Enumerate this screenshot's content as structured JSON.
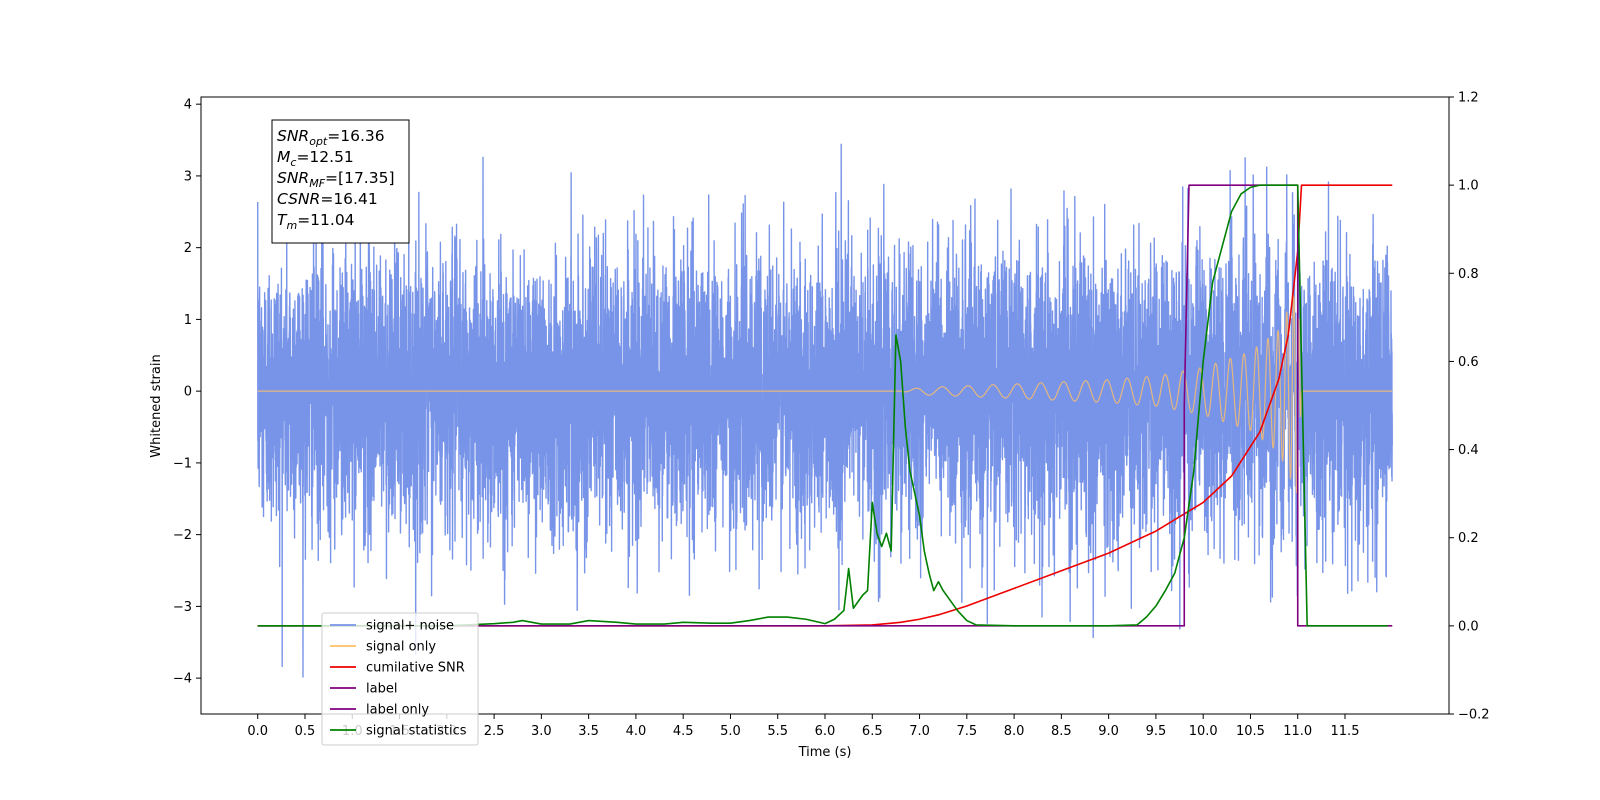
{
  "chart_data": {
    "type": "line",
    "title": "",
    "xlabel": "Time (s)",
    "ylabel_left": "Whitened strain",
    "ylabel_right": "",
    "xlim": [
      -0.6,
      12.6
    ],
    "ylim_left": [
      -4.5,
      4.1
    ],
    "ylim_right": [
      -0.2,
      1.2
    ],
    "x_ticks": [
      0.0,
      0.5,
      1.0,
      1.5,
      2.0,
      2.5,
      3.0,
      3.5,
      4.0,
      4.5,
      5.0,
      5.5,
      6.0,
      6.5,
      7.0,
      7.5,
      8.0,
      8.5,
      9.0,
      9.5,
      10.0,
      10.5,
      11.0,
      11.5
    ],
    "x_tick_labels": [
      "0.0",
      "0.5",
      "1.0",
      "1.5",
      "2.0",
      "2.5",
      "3.0",
      "3.5",
      "4.0",
      "4.5",
      "5.0",
      "5.5",
      "6.0",
      "6.5",
      "7.0",
      "7.5",
      "8.0",
      "8.5",
      "9.0",
      "9.5",
      "10.0",
      "10.5",
      "11.0",
      "11.5"
    ],
    "y_left_ticks": [
      4,
      3,
      2,
      1,
      0,
      -1,
      -2,
      -3,
      -4
    ],
    "y_left_tick_labels": [
      "4",
      "3",
      "2",
      "1",
      "0",
      "−1",
      "−2",
      "−3",
      "−4"
    ],
    "y_right_ticks": [
      1.2,
      1.0,
      0.8,
      0.6,
      0.4,
      0.2,
      0.0,
      -0.2
    ],
    "y_right_tick_labels": [
      "1.2",
      "1.0",
      "0.8",
      "0.6",
      "0.4",
      "0.2",
      "0.0",
      "−0.2"
    ],
    "grid": false,
    "legend_position": "lower-left",
    "annotation": {
      "lines": [
        {
          "base": "SNR",
          "sub": "opt",
          "value": "=16.36"
        },
        {
          "base": "M",
          "sub": "c",
          "value": "=12.51"
        },
        {
          "base": "SNR",
          "sub": "MF",
          "value": "=[17.35]"
        },
        {
          "base": "CSNR",
          "sub": "",
          "value": "=16.41"
        },
        {
          "base": "T",
          "sub": "m",
          "value": "=11.04"
        }
      ]
    },
    "series": [
      {
        "name": "signal+ noise",
        "axis": "left",
        "color": "#7894e8",
        "kind": "noise",
        "x_range": [
          0.0,
          12.0
        ],
        "std": 0.95,
        "peak_max": 3.7,
        "peak_min": -4.1
      },
      {
        "name": "signal only",
        "axis": "left",
        "color": "#ffbf66",
        "kind": "chirp",
        "x_range": [
          0.0,
          12.0
        ],
        "merger_time": 11.04,
        "envelope": [
          [
            0.0,
            0.0
          ],
          [
            6.8,
            0.0
          ],
          [
            7.0,
            0.05
          ],
          [
            8.0,
            0.1
          ],
          [
            9.0,
            0.16
          ],
          [
            9.5,
            0.21
          ],
          [
            10.0,
            0.33
          ],
          [
            10.5,
            0.55
          ],
          [
            10.8,
            0.85
          ],
          [
            11.0,
            1.45
          ],
          [
            11.04,
            0.0
          ],
          [
            12.0,
            0.0
          ]
        ]
      },
      {
        "name": "cumilative SNR",
        "axis": "right",
        "color": "#ee0000",
        "x": [
          0.0,
          6.0,
          6.5,
          6.8,
          7.0,
          7.2,
          7.5,
          8.0,
          8.5,
          9.0,
          9.5,
          10.0,
          10.3,
          10.6,
          10.8,
          10.9,
          11.0,
          11.04,
          11.1,
          12.0
        ],
        "y": [
          0.0,
          0.0,
          0.002,
          0.008,
          0.015,
          0.025,
          0.045,
          0.085,
          0.125,
          0.165,
          0.215,
          0.28,
          0.34,
          0.44,
          0.56,
          0.66,
          0.85,
          1.0,
          1.0,
          1.0
        ]
      },
      {
        "name": "label",
        "axis": "right",
        "color": "#800080",
        "x": [
          0.0,
          9.8,
          9.8,
          9.85,
          11.0,
          11.0,
          12.0
        ],
        "y": [
          0.0,
          0.0,
          0.5,
          1.0,
          1.0,
          0.0,
          0.0
        ]
      },
      {
        "name": "label only",
        "axis": "right",
        "color": "#800080",
        "x": [],
        "y": []
      },
      {
        "name": "signal statistics",
        "axis": "right",
        "color": "#008000",
        "x": [
          0.0,
          2.0,
          2.5,
          2.7,
          2.8,
          3.0,
          3.3,
          3.5,
          3.8,
          4.0,
          4.3,
          4.5,
          4.8,
          5.0,
          5.2,
          5.4,
          5.6,
          5.8,
          6.0,
          6.1,
          6.2,
          6.25,
          6.3,
          6.4,
          6.45,
          6.5,
          6.55,
          6.6,
          6.65,
          6.7,
          6.75,
          6.8,
          6.85,
          6.9,
          6.95,
          7.0,
          7.05,
          7.1,
          7.15,
          7.2,
          7.25,
          7.3,
          7.35,
          7.4,
          7.5,
          7.6,
          8.0,
          9.0,
          9.3,
          9.4,
          9.5,
          9.6,
          9.7,
          9.8,
          9.9,
          10.0,
          10.1,
          10.2,
          10.3,
          10.4,
          10.5,
          10.6,
          10.8,
          11.0,
          11.05,
          11.1,
          11.5,
          11.95
        ],
        "y": [
          0.0,
          0.0,
          0.005,
          0.008,
          0.012,
          0.004,
          0.004,
          0.012,
          0.008,
          0.004,
          0.004,
          0.008,
          0.006,
          0.006,
          0.012,
          0.02,
          0.02,
          0.015,
          0.005,
          0.015,
          0.035,
          0.13,
          0.04,
          0.07,
          0.08,
          0.28,
          0.21,
          0.18,
          0.21,
          0.17,
          0.66,
          0.6,
          0.45,
          0.35,
          0.3,
          0.25,
          0.17,
          0.12,
          0.08,
          0.1,
          0.08,
          0.065,
          0.05,
          0.035,
          0.012,
          0.002,
          0.0,
          0.0,
          0.002,
          0.02,
          0.045,
          0.08,
          0.12,
          0.2,
          0.35,
          0.6,
          0.78,
          0.86,
          0.94,
          0.98,
          0.995,
          1.0,
          1.0,
          1.0,
          0.5,
          0.0,
          0.0,
          0.0
        ]
      }
    ]
  }
}
